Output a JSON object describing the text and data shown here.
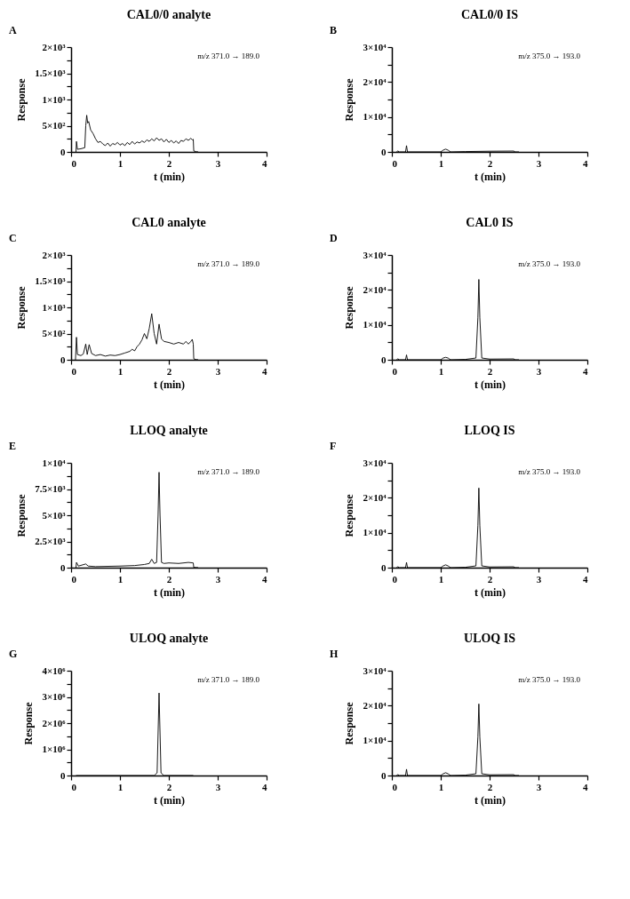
{
  "chart_data": [
    {
      "type": "line",
      "title": "CAL0/0 analyte",
      "xlabel": "t (min)",
      "ylabel": "Response",
      "annotations": [
        "A",
        "m/z 371.0 → 189.0"
      ],
      "grid": false,
      "xlim": [
        0,
        4
      ],
      "xticks": [
        0,
        1,
        2,
        3,
        4
      ],
      "ylim": [
        0,
        2000
      ],
      "yticks": [
        0,
        {
          "value": 250,
          "label": null
        },
        {
          "value": 500,
          "label": "5×10²"
        },
        {
          "value": 750,
          "label": null
        },
        {
          "value": 1000,
          "label": "1×10³"
        },
        {
          "value": 1250,
          "label": null
        },
        {
          "value": 1500,
          "label": "1.5×10³"
        },
        {
          "value": 1750,
          "label": null
        },
        {
          "value": 2000,
          "label": "2×10³"
        }
      ],
      "x": [
        0.1,
        0.11,
        0.13,
        0.2,
        0.28,
        0.3,
        0.32,
        0.34,
        0.36,
        0.4,
        0.45,
        0.5,
        0.55,
        0.6,
        0.65,
        0.7,
        0.75,
        0.8,
        0.85,
        0.9,
        0.95,
        1.0,
        1.05,
        1.1,
        1.15,
        1.2,
        1.25,
        1.3,
        1.35,
        1.4,
        1.45,
        1.5,
        1.55,
        1.6,
        1.65,
        1.7,
        1.75,
        1.8,
        1.85,
        1.9,
        1.95,
        2.0,
        2.05,
        2.1,
        2.15,
        2.2,
        2.25,
        2.3,
        2.35,
        2.4,
        2.45,
        2.48,
        2.5,
        2.51,
        2.55,
        2.6
      ],
      "series": [
        {
          "color": "#000000",
          "values": [
            0,
            200,
            50,
            60,
            80,
            500,
            700,
            550,
            580,
            420,
            350,
            250,
            180,
            200,
            150,
            120,
            170,
            110,
            160,
            140,
            180,
            130,
            160,
            120,
            180,
            140,
            200,
            150,
            190,
            170,
            210,
            180,
            230,
            200,
            250,
            210,
            270,
            220,
            250,
            190,
            240,
            180,
            220,
            170,
            210,
            160,
            220,
            200,
            250,
            220,
            260,
            230,
            240,
            20,
            5,
            0
          ]
        }
      ]
    },
    {
      "type": "line",
      "title": "CAL0/0 IS",
      "xlabel": "t (min)",
      "ylabel": "Response",
      "annotations": [
        "B",
        "m/z 375.0 → 193.0"
      ],
      "grid": false,
      "xlim": [
        0,
        4
      ],
      "xticks": [
        0,
        1,
        2,
        3,
        4
      ],
      "ylim": [
        0,
        30000
      ],
      "yticks": [
        0,
        {
          "value": 5000,
          "label": null
        },
        {
          "value": 10000,
          "label": "1×10⁴"
        },
        {
          "value": 15000,
          "label": null
        },
        {
          "value": 20000,
          "label": "2×10⁴"
        },
        {
          "value": 25000,
          "label": null
        },
        {
          "value": 30000,
          "label": "3×10⁴"
        }
      ],
      "x": [
        0.1,
        0.12,
        0.15,
        0.28,
        0.3,
        0.32,
        1.0,
        1.05,
        1.1,
        1.15,
        1.2,
        1.5,
        2.0,
        2.5,
        2.51,
        2.6
      ],
      "series": [
        {
          "color": "#000000",
          "values": [
            0,
            300,
            0,
            0,
            1800,
            0,
            0,
            500,
            800,
            500,
            0,
            100,
            200,
            250,
            0,
            0
          ]
        }
      ]
    },
    {
      "type": "line",
      "title": "CAL0 analyte",
      "xlabel": "t (min)",
      "ylabel": "Response",
      "annotations": [
        "C",
        "m/z 371.0 → 189.0"
      ],
      "grid": false,
      "xlim": [
        0,
        4
      ],
      "xticks": [
        0,
        1,
        2,
        3,
        4
      ],
      "ylim": [
        0,
        2000
      ],
      "yticks": [
        0,
        {
          "value": 250,
          "label": null
        },
        {
          "value": 500,
          "label": "5×10²"
        },
        {
          "value": 750,
          "label": null
        },
        {
          "value": 1000,
          "label": "1×10³"
        },
        {
          "value": 1250,
          "label": null
        },
        {
          "value": 1500,
          "label": "1.5×10³"
        },
        {
          "value": 1750,
          "label": null
        },
        {
          "value": 2000,
          "label": "2×10³"
        }
      ],
      "x": [
        0.09,
        0.11,
        0.13,
        0.2,
        0.25,
        0.3,
        0.33,
        0.37,
        0.42,
        0.5,
        0.6,
        0.7,
        0.8,
        0.9,
        1.0,
        1.1,
        1.2,
        1.25,
        1.3,
        1.35,
        1.4,
        1.45,
        1.5,
        1.55,
        1.6,
        1.65,
        1.7,
        1.75,
        1.8,
        1.85,
        1.9,
        2.0,
        2.1,
        2.2,
        2.3,
        2.35,
        2.4,
        2.45,
        2.48,
        2.5,
        2.51,
        2.55,
        2.6
      ],
      "series": [
        {
          "color": "#000000",
          "values": [
            0,
            430,
            100,
            80,
            110,
            300,
            100,
            290,
            120,
            80,
            100,
            70,
            90,
            80,
            100,
            130,
            160,
            200,
            170,
            250,
            300,
            380,
            500,
            400,
            600,
            880,
            500,
            300,
            680,
            400,
            350,
            330,
            300,
            330,
            300,
            350,
            300,
            350,
            390,
            300,
            20,
            5,
            0
          ]
        }
      ]
    },
    {
      "type": "line",
      "title": "CAL0 IS",
      "xlabel": "t (min)",
      "ylabel": "Response",
      "annotations": [
        "D",
        "m/z 375.0 → 193.0"
      ],
      "grid": false,
      "xlim": [
        0,
        4
      ],
      "xticks": [
        0,
        1,
        2,
        3,
        4
      ],
      "ylim": [
        0,
        30000
      ],
      "yticks": [
        0,
        {
          "value": 5000,
          "label": null
        },
        {
          "value": 10000,
          "label": "1×10⁴"
        },
        {
          "value": 15000,
          "label": null
        },
        {
          "value": 20000,
          "label": "2×10⁴"
        },
        {
          "value": 25000,
          "label": null
        },
        {
          "value": 30000,
          "label": "3×10⁴"
        }
      ],
      "x": [
        0.1,
        0.12,
        0.15,
        0.28,
        0.3,
        0.32,
        1.0,
        1.05,
        1.1,
        1.15,
        1.2,
        1.5,
        1.72,
        1.76,
        1.78,
        1.8,
        1.84,
        2.0,
        2.5,
        2.51,
        2.6
      ],
      "series": [
        {
          "color": "#000000",
          "values": [
            0,
            300,
            0,
            0,
            1400,
            0,
            0,
            500,
            700,
            500,
            0,
            100,
            500,
            12000,
            23000,
            12000,
            500,
            200,
            250,
            0,
            0
          ]
        }
      ]
    },
    {
      "type": "line",
      "title": "LLOQ analyte",
      "xlabel": "t (min)",
      "ylabel": "Response",
      "annotations": [
        "E",
        "m/z 371.0 → 189.0"
      ],
      "grid": false,
      "xlim": [
        0,
        4
      ],
      "xticks": [
        0,
        1,
        2,
        3,
        4
      ],
      "ylim": [
        0,
        10000
      ],
      "yticks": [
        0,
        {
          "value": 1250,
          "label": null
        },
        {
          "value": 2500,
          "label": "2.5×10³"
        },
        {
          "value": 3750,
          "label": null
        },
        {
          "value": 5000,
          "label": "5×10³"
        },
        {
          "value": 6250,
          "label": null
        },
        {
          "value": 7500,
          "label": "7.5×10³"
        },
        {
          "value": 8750,
          "label": null
        },
        {
          "value": 10000,
          "label": "1×10⁴"
        }
      ],
      "x": [
        0.1,
        0.11,
        0.15,
        0.3,
        0.35,
        0.5,
        1.0,
        1.3,
        1.5,
        1.6,
        1.65,
        1.7,
        1.75,
        1.78,
        1.8,
        1.82,
        1.85,
        1.9,
        2.0,
        2.2,
        2.4,
        2.5,
        2.51,
        2.6
      ],
      "series": [
        {
          "color": "#000000",
          "values": [
            0,
            500,
            150,
            350,
            150,
            100,
            150,
            200,
            300,
            400,
            800,
            400,
            500,
            5000,
            9100,
            5000,
            500,
            400,
            450,
            400,
            500,
            450,
            20,
            0
          ]
        }
      ]
    },
    {
      "type": "line",
      "title": "LLOQ IS",
      "xlabel": "t (min)",
      "ylabel": "Response",
      "annotations": [
        "F",
        "m/z 375.0 → 193.0"
      ],
      "grid": false,
      "xlim": [
        0,
        4
      ],
      "xticks": [
        0,
        1,
        2,
        3,
        4
      ],
      "ylim": [
        0,
        30000
      ],
      "yticks": [
        0,
        {
          "value": 5000,
          "label": null
        },
        {
          "value": 10000,
          "label": "1×10⁴"
        },
        {
          "value": 15000,
          "label": null
        },
        {
          "value": 20000,
          "label": "2×10⁴"
        },
        {
          "value": 25000,
          "label": null
        },
        {
          "value": 30000,
          "label": "3×10⁴"
        }
      ],
      "x": [
        0.1,
        0.12,
        0.15,
        0.28,
        0.3,
        0.32,
        1.0,
        1.05,
        1.1,
        1.15,
        1.2,
        1.5,
        1.72,
        1.76,
        1.78,
        1.8,
        1.84,
        2.0,
        2.5,
        2.51,
        2.6
      ],
      "series": [
        {
          "color": "#000000",
          "values": [
            0,
            300,
            0,
            0,
            1500,
            0,
            0,
            500,
            800,
            500,
            0,
            100,
            500,
            12000,
            22800,
            12000,
            500,
            200,
            250,
            0,
            0
          ]
        }
      ]
    },
    {
      "type": "line",
      "title": "ULOQ analyte",
      "xlabel": "t (min)",
      "ylabel": "Response",
      "annotations": [
        "G",
        "m/z 371.0 → 189.0"
      ],
      "grid": false,
      "xlim": [
        0,
        4
      ],
      "xticks": [
        0,
        1,
        2,
        3,
        4
      ],
      "ylim": [
        0,
        4000000
      ],
      "yticks": [
        0,
        {
          "value": 500000,
          "label": null
        },
        {
          "value": 1000000,
          "label": "1×10⁶"
        },
        {
          "value": 1500000,
          "label": null
        },
        {
          "value": 2000000,
          "label": "2×10⁶"
        },
        {
          "value": 2500000,
          "label": null
        },
        {
          "value": 3000000,
          "label": "3×10⁶"
        },
        {
          "value": 3500000,
          "label": null
        },
        {
          "value": 4000000,
          "label": "4×10⁶"
        }
      ],
      "x": [
        0.1,
        1.7,
        1.76,
        1.8,
        1.84,
        1.9,
        2.5
      ],
      "series": [
        {
          "color": "#000000",
          "values": [
            0,
            0,
            100000,
            3150000,
            100000,
            0,
            0
          ]
        }
      ]
    },
    {
      "type": "line",
      "title": "ULOQ IS",
      "xlabel": "t (min)",
      "ylabel": "Response",
      "annotations": [
        "H",
        "m/z 375.0 → 193.0"
      ],
      "grid": false,
      "xlim": [
        0,
        4
      ],
      "xticks": [
        0,
        1,
        2,
        3,
        4
      ],
      "ylim": [
        0,
        30000
      ],
      "yticks": [
        0,
        {
          "value": 5000,
          "label": null
        },
        {
          "value": 10000,
          "label": "1×10⁴"
        },
        {
          "value": 15000,
          "label": null
        },
        {
          "value": 20000,
          "label": "2×10⁴"
        },
        {
          "value": 25000,
          "label": null
        },
        {
          "value": 30000,
          "label": "3×10⁴"
        }
      ],
      "x": [
        0.1,
        0.12,
        0.15,
        0.28,
        0.3,
        0.32,
        1.0,
        1.05,
        1.1,
        1.15,
        1.2,
        1.5,
        1.72,
        1.76,
        1.78,
        1.8,
        1.84,
        2.0,
        2.5,
        2.51,
        2.6
      ],
      "series": [
        {
          "color": "#000000",
          "values": [
            0,
            300,
            0,
            0,
            1800,
            0,
            0,
            500,
            800,
            500,
            0,
            100,
            500,
            11000,
            20500,
            11000,
            500,
            200,
            250,
            0,
            0
          ]
        }
      ]
    }
  ]
}
